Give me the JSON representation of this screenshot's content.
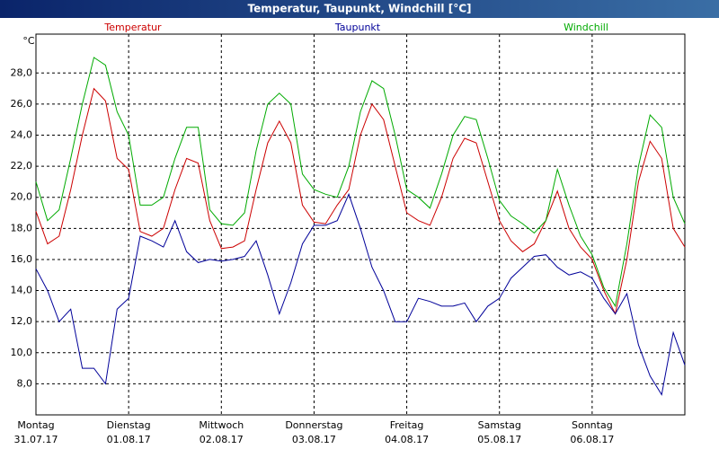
{
  "chart_data": {
    "type": "line",
    "title": "Temperatur, Taupunkt, Windchill [°C]",
    "y_unit": "°C",
    "x": [
      0,
      3,
      6,
      9,
      12,
      15,
      18,
      21,
      24,
      27,
      30,
      33,
      36,
      39,
      42,
      45,
      48,
      51,
      54,
      57,
      60,
      63,
      66,
      69,
      72,
      75,
      78,
      81,
      84,
      87,
      90,
      93,
      96,
      99,
      102,
      105,
      108,
      111,
      114,
      117,
      120,
      123,
      126,
      129,
      132,
      135,
      138,
      141,
      144,
      147,
      150,
      153,
      156,
      159,
      162,
      165,
      168
    ],
    "series": [
      {
        "name": "Temperatur",
        "color": "#cc0000",
        "values": [
          19.1,
          17.0,
          17.5,
          20.5,
          24.0,
          27.0,
          26.2,
          22.5,
          21.8,
          17.8,
          17.5,
          18.0,
          20.5,
          22.5,
          22.2,
          18.5,
          16.7,
          16.8,
          17.2,
          20.5,
          23.5,
          24.9,
          23.5,
          19.5,
          18.4,
          18.3,
          19.5,
          20.5,
          24.0,
          26.0,
          25.0,
          22.0,
          19.0,
          18.5,
          18.2,
          20.0,
          22.5,
          23.8,
          23.5,
          21.0,
          18.5,
          17.2,
          16.5,
          17.0,
          18.5,
          20.4,
          18.0,
          16.8,
          16.0,
          14.0,
          12.5,
          16.0,
          21.0,
          23.6,
          22.5,
          18.0,
          16.8
        ]
      },
      {
        "name": "Taupunkt",
        "color": "#000099",
        "values": [
          15.4,
          14.0,
          12.0,
          12.8,
          9.0,
          9.0,
          8.0,
          12.8,
          13.5,
          17.5,
          17.2,
          16.8,
          18.5,
          16.5,
          15.8,
          16.0,
          15.9,
          16.0,
          16.2,
          17.2,
          15.0,
          12.5,
          14.5,
          17.0,
          18.2,
          18.2,
          18.5,
          20.2,
          18.0,
          15.5,
          14.0,
          12.0,
          12.0,
          13.5,
          13.3,
          13.0,
          13.0,
          13.2,
          12.0,
          13.0,
          13.5,
          14.8,
          15.5,
          16.2,
          16.3,
          15.5,
          15.0,
          15.2,
          14.8,
          13.5,
          12.5,
          13.8,
          10.5,
          8.5,
          7.3,
          11.3,
          9.2
        ]
      },
      {
        "name": "Windchill",
        "color": "#00aa00",
        "values": [
          21.0,
          18.5,
          19.2,
          22.5,
          26.0,
          29.0,
          28.5,
          25.5,
          24.0,
          19.5,
          19.5,
          20.0,
          22.5,
          24.5,
          24.5,
          19.2,
          18.3,
          18.2,
          19.0,
          23.0,
          26.0,
          26.7,
          26.0,
          21.5,
          20.5,
          20.2,
          20.0,
          22.0,
          25.5,
          27.5,
          27.0,
          24.0,
          20.5,
          20.0,
          19.3,
          21.5,
          24.0,
          25.2,
          25.0,
          22.5,
          19.8,
          18.8,
          18.3,
          17.7,
          18.5,
          21.8,
          19.5,
          17.5,
          16.3,
          14.2,
          13.0,
          17.0,
          22.0,
          25.3,
          24.5,
          20.0,
          18.3
        ]
      }
    ],
    "xlim": [
      0,
      168
    ],
    "xticks": [
      {
        "value": 0,
        "label": "Montag"
      },
      {
        "value": 24,
        "label": "Dienstag"
      },
      {
        "value": 48,
        "label": "Mittwoch"
      },
      {
        "value": 72,
        "label": "Donnerstag"
      },
      {
        "value": 96,
        "label": "Freitag"
      },
      {
        "value": 120,
        "label": "Samstag"
      },
      {
        "value": 144,
        "label": "Sonntag"
      }
    ],
    "xtick_dates": [
      "31.07.17",
      "01.08.17",
      "02.08.17",
      "03.08.17",
      "04.08.17",
      "05.08.17",
      "06.08.17"
    ],
    "ylim": [
      6,
      30.5
    ],
    "yticks": [
      {
        "value": 8,
        "label": "8,0"
      },
      {
        "value": 10,
        "label": "10,0"
      },
      {
        "value": 12,
        "label": "12,0"
      },
      {
        "value": 14,
        "label": "14,0"
      },
      {
        "value": 16,
        "label": "16,0"
      },
      {
        "value": 18,
        "label": "18,0"
      },
      {
        "value": 20,
        "label": "20,0"
      },
      {
        "value": 22,
        "label": "22,0"
      },
      {
        "value": 24,
        "label": "24,0"
      },
      {
        "value": 26,
        "label": "26,0"
      },
      {
        "value": 28,
        "label": "28,0"
      }
    ],
    "grid": true
  }
}
